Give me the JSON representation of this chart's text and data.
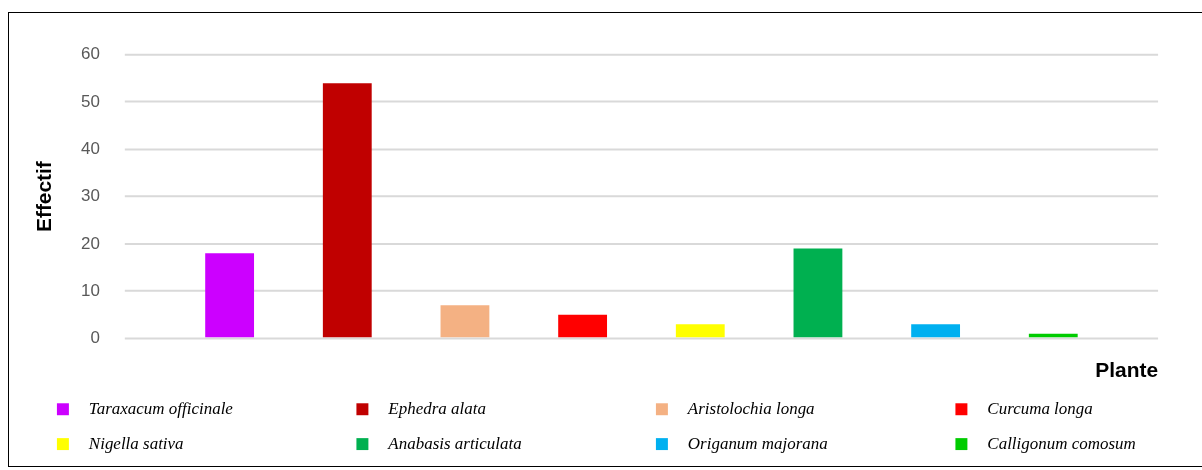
{
  "chart_data": {
    "type": "bar",
    "xlabel": "Plante",
    "ylabel": "Effectif",
    "categories": [
      null
    ],
    "series": [
      {
        "name": "Taraxacum officinale",
        "color": "#cc00ff",
        "values": [
          18
        ]
      },
      {
        "name": "Ephedra alata",
        "color": "#c00000",
        "values": [
          54
        ]
      },
      {
        "name": "Aristolochia longa",
        "color": "#f4b183",
        "values": [
          7
        ]
      },
      {
        "name": "Curcuma longa",
        "color": "#ff0000",
        "values": [
          5
        ]
      },
      {
        "name": "Nigella sativa",
        "color": "#ffff00",
        "values": [
          3
        ]
      },
      {
        "name": "Anabasis articulata",
        "color": "#00b050",
        "values": [
          19
        ]
      },
      {
        "name": "Origanum majorana",
        "color": "#00b0f0",
        "values": [
          3
        ]
      },
      {
        "name": "Calligonum comosum",
        "color": "#00cc00",
        "values": [
          1
        ]
      }
    ],
    "ylim": [
      0,
      60
    ],
    "yticks": [
      0,
      10,
      20,
      30,
      40,
      50,
      60
    ],
    "grid": "y",
    "legend": "bottom"
  }
}
